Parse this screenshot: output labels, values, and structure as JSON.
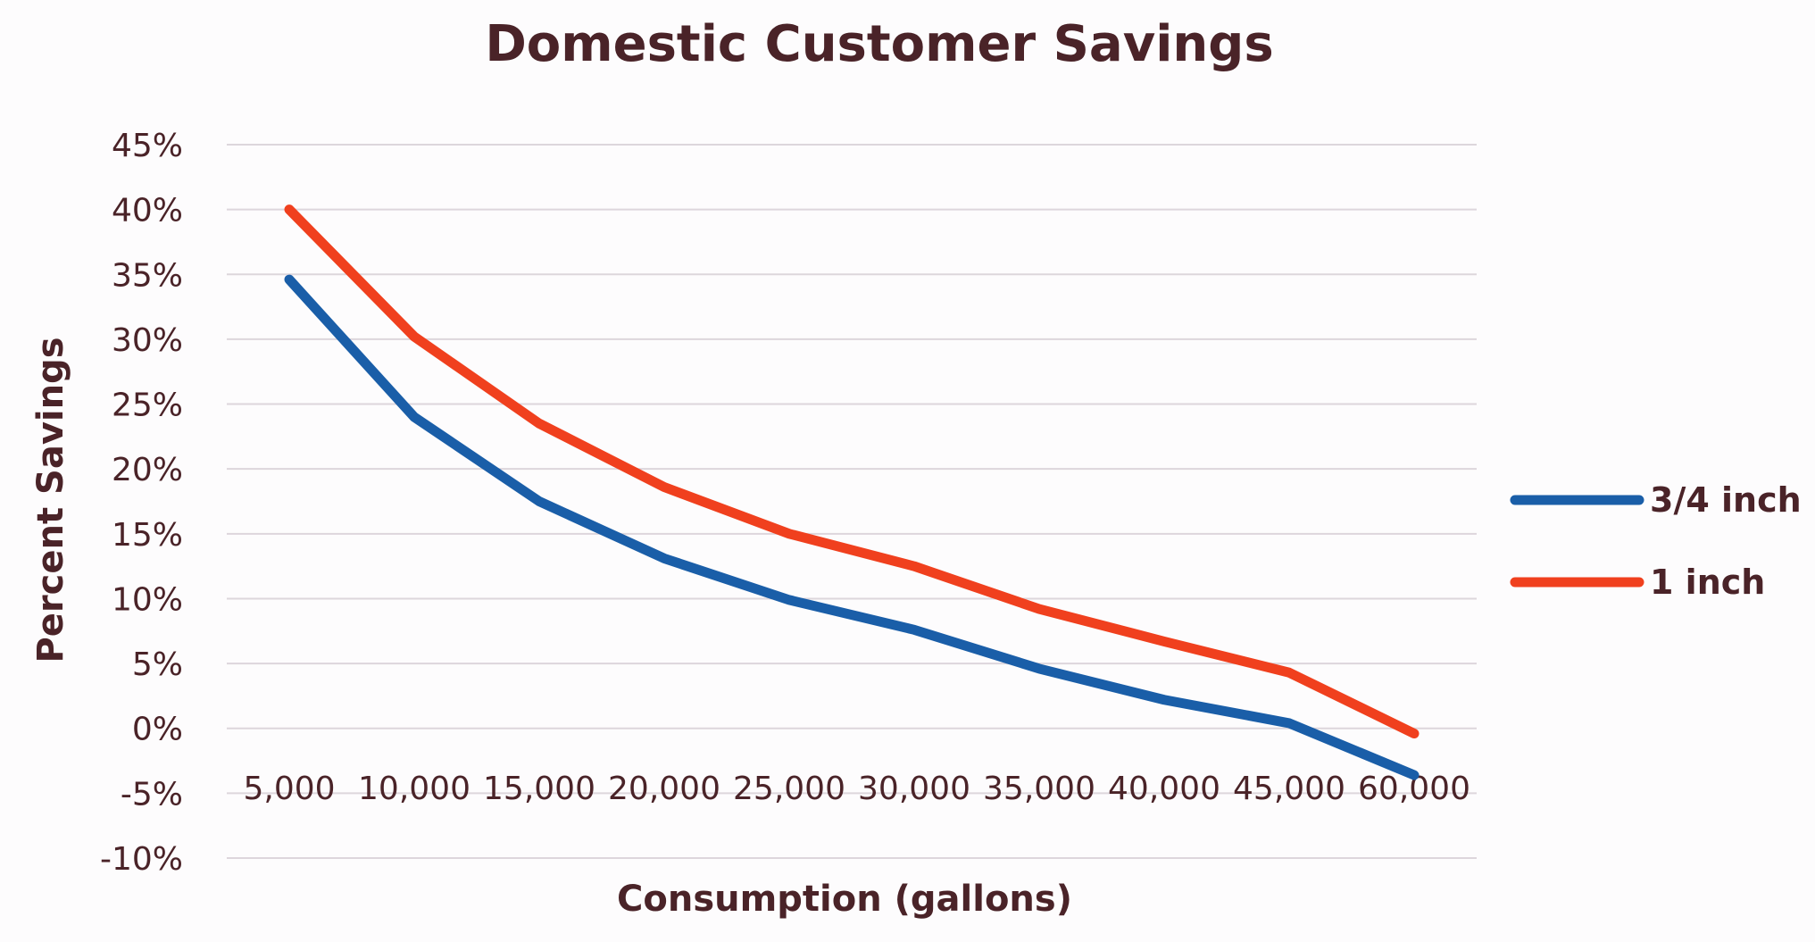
{
  "chart_data": {
    "type": "line",
    "title": "Domestic Customer Savings",
    "xlabel": "Consumption (gallons)",
    "ylabel": "Percent  Savings",
    "categories": [
      "5,000",
      "10,000",
      "15,000",
      "20,000",
      "25,000",
      "30,000",
      "35,000",
      "40,000",
      "45,000",
      "60,000"
    ],
    "yticks": [
      "45%",
      "40%",
      "35%",
      "30%",
      "25%",
      "20%",
      "15%",
      "10%",
      "5%",
      "0%",
      "-5%",
      "-10%"
    ],
    "ylim": [
      -10,
      45
    ],
    "grid": true,
    "legend_position": "right",
    "series": [
      {
        "name": "3/4 inch",
        "color": "#1a5ea8",
        "values": [
          34.6,
          24.0,
          17.5,
          13.1,
          9.9,
          7.6,
          4.6,
          2.2,
          0.4,
          -3.6
        ]
      },
      {
        "name": "1 inch",
        "color": "#f0401e",
        "values": [
          40.0,
          30.2,
          23.5,
          18.6,
          15.0,
          12.5,
          9.2,
          6.7,
          4.3,
          -0.4
        ]
      }
    ]
  }
}
